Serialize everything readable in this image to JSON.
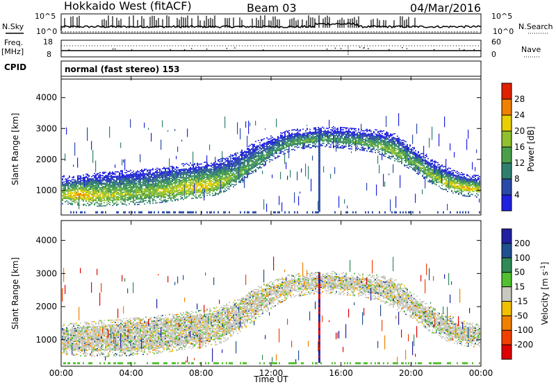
{
  "header": {
    "station": "Hokkaido West (fitACF)",
    "beam": "Beam 03",
    "date": "04/Mar/2016"
  },
  "top_panels": {
    "nsky_label": "N.Sky",
    "nsearch_label": "N.Search",
    "noise_ticks": [
      "10^5",
      "10^0"
    ],
    "freq_label": "Freq.",
    "freq_unit": "[MHz]",
    "freq_ticks": [
      "18",
      "8"
    ],
    "nave_label": "Nave",
    "nave_ticks": [
      "60",
      "0"
    ],
    "cpid_label": "CPID",
    "cpid_text": "normal (fast stereo) 153"
  },
  "colors": {
    "power_scale": [
      "#2020e0",
      "#2a4aa8",
      "#2f7f6f",
      "#4aa04a",
      "#90c030",
      "#e8d000",
      "#f08000",
      "#e02000"
    ],
    "velocity_scale": [
      "#e00000",
      "#f04000",
      "#f08000",
      "#f0c000",
      "#c8c8c0",
      "#50c030",
      "#2e8b57",
      "#205090",
      "#2020a0"
    ]
  },
  "chart_data": [
    {
      "type": "heatmap",
      "title": "Power",
      "xlabel": "Time UT",
      "ylabel": "Slant Range [km]",
      "x_ticks": [
        "00:00",
        "04:00",
        "08:00",
        "12:00",
        "16:00",
        "20:00",
        "00:00"
      ],
      "y_ticks": [
        1000,
        2000,
        3000,
        4000
      ],
      "ylim": [
        200,
        4600
      ],
      "xlim_hours": [
        0,
        24
      ],
      "colorbar_label": "Power [dB]",
      "colorbar_ticks": [
        "4",
        "8",
        "12",
        "16",
        "20",
        "24",
        "28"
      ],
      "echo_band": {
        "hours": [
          0,
          1,
          2,
          3,
          4,
          5,
          6,
          7,
          8,
          9,
          10,
          11,
          12,
          13,
          14,
          15,
          16,
          17,
          18,
          19,
          20,
          21,
          22,
          23,
          24
        ],
        "lower_km": [
          700,
          650,
          620,
          640,
          660,
          700,
          760,
          840,
          900,
          1000,
          1300,
          1700,
          2100,
          2400,
          2500,
          2550,
          2500,
          2450,
          2350,
          2100,
          1800,
          1400,
          1100,
          950,
          900
        ],
        "upper_km": [
          1300,
          1350,
          1400,
          1450,
          1500,
          1550,
          1600,
          1700,
          1750,
          1850,
          2050,
          2400,
          2600,
          2800,
          2850,
          2900,
          2900,
          2850,
          2800,
          2700,
          2300,
          1900,
          1600,
          1400,
          1300
        ],
        "peak_power_db": [
          20,
          26,
          22,
          20,
          18,
          18,
          20,
          22,
          24,
          20,
          16,
          14,
          12,
          14,
          16,
          14,
          14,
          14,
          16,
          18,
          16,
          18,
          22,
          24,
          22
        ]
      }
    },
    {
      "type": "heatmap",
      "title": "Velocity",
      "xlabel": "Time UT",
      "ylabel": "Slant Range [km]",
      "x_ticks": [
        "00:00",
        "04:00",
        "08:00",
        "12:00",
        "16:00",
        "20:00",
        "00:00"
      ],
      "y_ticks": [
        1000,
        2000,
        3000,
        4000
      ],
      "ylim": [
        200,
        4600
      ],
      "xlim_hours": [
        0,
        24
      ],
      "colorbar_label": "Velocity [m s^-1]",
      "colorbar_ticks": [
        "200",
        "100",
        "50",
        "15",
        "-15",
        "-50",
        "-100",
        "-200"
      ]
    }
  ]
}
